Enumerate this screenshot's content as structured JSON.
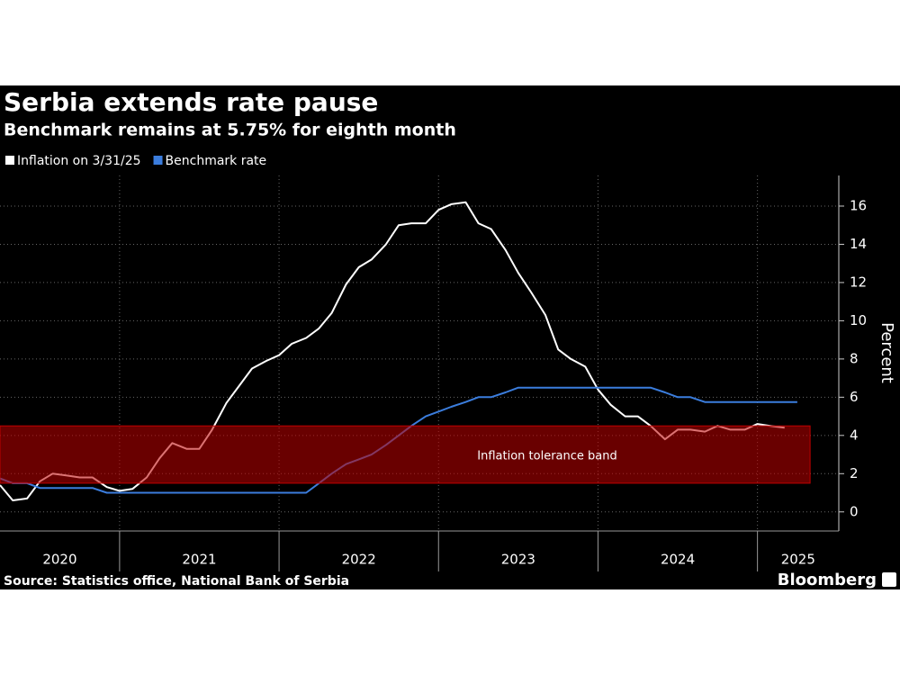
{
  "chart_data": {
    "type": "line",
    "title": "Serbia extends rate pause",
    "subtitle": "Benchmark remains at 5.75% for eighth month",
    "y_axis_label": "Percent",
    "source": "Source: Statistics office, National Bank of Serbia",
    "brand": "Bloomberg",
    "categories": [
      "2020",
      "2021",
      "2022",
      "2023",
      "2024",
      "2025"
    ],
    "x": [
      2020.25,
      2020.33,
      2020.42,
      2020.5,
      2020.58,
      2020.67,
      2020.75,
      2020.83,
      2020.92,
      2021.0,
      2021.08,
      2021.17,
      2021.25,
      2021.33,
      2021.42,
      2021.5,
      2021.58,
      2021.67,
      2021.75,
      2021.83,
      2021.92,
      2022.0,
      2022.08,
      2022.17,
      2022.25,
      2022.33,
      2022.42,
      2022.5,
      2022.58,
      2022.67,
      2022.75,
      2022.83,
      2022.92,
      2023.0,
      2023.08,
      2023.17,
      2023.25,
      2023.33,
      2023.42,
      2023.5,
      2023.58,
      2023.67,
      2023.75,
      2023.83,
      2023.92,
      2024.0,
      2024.08,
      2024.17,
      2024.25,
      2024.33,
      2024.42,
      2024.5,
      2024.58,
      2024.67,
      2024.75,
      2024.83,
      2024.92,
      2025.0,
      2025.08,
      2025.17,
      2025.25
    ],
    "series": [
      {
        "name": "Inflation on 3/31/25",
        "color": "#ffffff",
        "values": [
          1.4,
          0.6,
          0.7,
          1.6,
          2.0,
          1.9,
          1.8,
          1.8,
          1.3,
          1.1,
          1.2,
          1.8,
          2.8,
          3.6,
          3.3,
          3.3,
          4.3,
          5.7,
          6.6,
          7.5,
          7.9,
          8.2,
          8.8,
          9.1,
          9.6,
          10.4,
          11.9,
          12.8,
          13.2,
          14.0,
          15.0,
          15.1,
          15.1,
          15.8,
          16.1,
          16.2,
          15.1,
          14.8,
          13.7,
          12.5,
          11.5,
          10.3,
          8.5,
          8.0,
          7.6,
          6.4,
          5.6,
          5.0,
          5.0,
          4.5,
          3.8,
          4.3,
          4.3,
          4.2,
          4.5,
          4.3,
          4.3,
          4.6,
          4.5,
          4.4,
          null
        ]
      },
      {
        "name": "Benchmark rate",
        "color": "#3b7ddd",
        "values": [
          1.75,
          1.5,
          1.5,
          1.25,
          1.25,
          1.25,
          1.25,
          1.25,
          1.0,
          1.0,
          1.0,
          1.0,
          1.0,
          1.0,
          1.0,
          1.0,
          1.0,
          1.0,
          1.0,
          1.0,
          1.0,
          1.0,
          1.0,
          1.0,
          1.5,
          2.0,
          2.5,
          2.75,
          3.0,
          3.5,
          4.0,
          4.5,
          5.0,
          5.25,
          5.5,
          5.75,
          6.0,
          6.0,
          6.25,
          6.5,
          6.5,
          6.5,
          6.5,
          6.5,
          6.5,
          6.5,
          6.5,
          6.5,
          6.5,
          6.5,
          6.25,
          6.0,
          6.0,
          5.75,
          5.75,
          5.75,
          5.75,
          5.75,
          5.75,
          5.75,
          5.75
        ]
      }
    ],
    "band": {
      "label": "Inflation tolerance band",
      "ymin": 1.5,
      "ymax": 4.5,
      "xmin": 2020.25,
      "xmax": 2025.33,
      "color": "#c00000"
    },
    "xlim": [
      2020.25,
      2025.51
    ],
    "xticks": [
      2021,
      2022,
      2023,
      2024,
      2025
    ],
    "ylim": [
      -1,
      17.6
    ],
    "yticks": [
      0,
      2,
      4,
      6,
      8,
      10,
      12,
      14,
      16
    ],
    "grid": true,
    "y_axis_side": "right"
  }
}
